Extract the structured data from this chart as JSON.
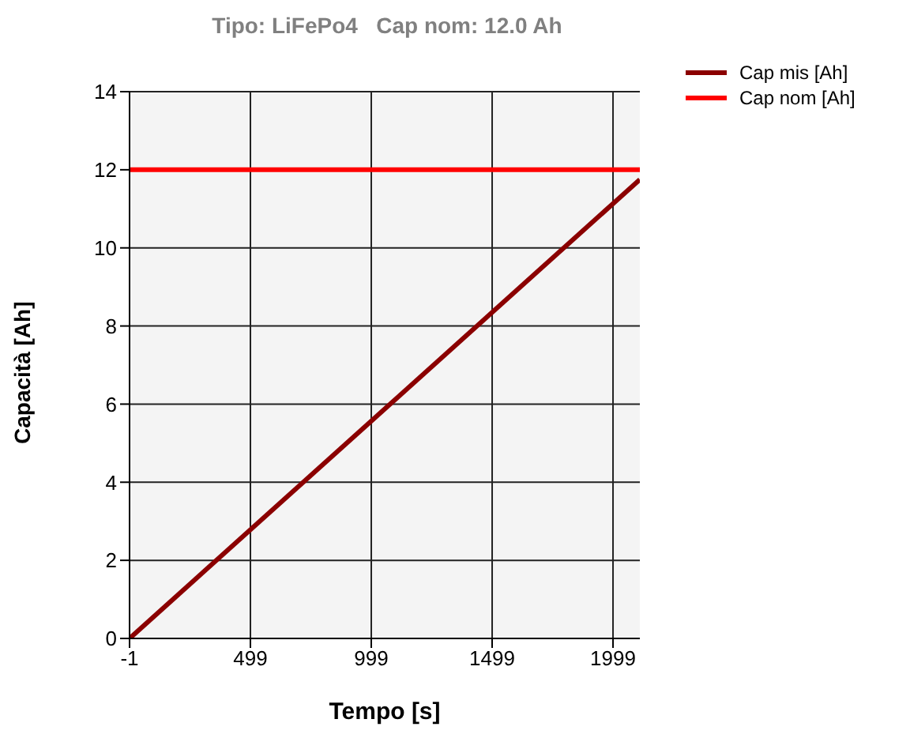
{
  "chart_data": {
    "type": "line",
    "title": "Tipo: LiFePo4   Cap nom: 12.0 Ah",
    "xlabel": "Tempo [s]",
    "ylabel": "Capacità [Ah]",
    "x": [
      -1,
      2110
    ],
    "series": [
      {
        "name": "Cap mis [Ah]",
        "color": "#8b0000",
        "values": [
          0,
          11.75
        ]
      },
      {
        "name": "Cap nom [Ah]",
        "color": "#ff0000",
        "values": [
          12,
          12
        ]
      }
    ],
    "xlim": [
      -1,
      2110
    ],
    "xticks": [
      -1,
      499,
      999,
      1499,
      1999
    ],
    "ylim": [
      0,
      14
    ],
    "yticks": [
      0,
      2,
      4,
      6,
      8,
      10,
      12,
      14
    ],
    "grid": true,
    "legend": "top right",
    "marker": "none",
    "line_style": "solid"
  }
}
